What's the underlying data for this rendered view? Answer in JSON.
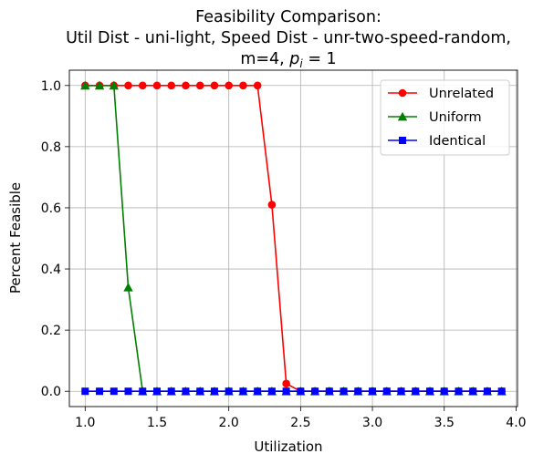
{
  "chart_data": {
    "type": "line",
    "title_lines": [
      "Feasibility Comparison:",
      "Util Dist - uni-light, Speed Dist - unr-two-speed-random,"
    ],
    "title_line3": {
      "prefix": "m=4, ",
      "p": "p",
      "sub": "i",
      "suffix": " = 1"
    },
    "xlabel": "Utilization",
    "ylabel": "Percent Feasible",
    "xlim": [
      0.89,
      4.01
    ],
    "ylim": [
      -0.05,
      1.05
    ],
    "xticks": [
      1.0,
      1.5,
      2.0,
      2.5,
      3.0,
      3.5,
      4.0
    ],
    "xtick_labels": [
      "1.0",
      "1.5",
      "2.0",
      "2.5",
      "3.0",
      "3.5",
      "4.0"
    ],
    "yticks": [
      0.0,
      0.2,
      0.4,
      0.6,
      0.8,
      1.0
    ],
    "ytick_labels": [
      "0.0",
      "0.2",
      "0.4",
      "0.6",
      "0.8",
      "1.0"
    ],
    "grid": true,
    "legend_position": "top-right",
    "x": [
      1.0,
      1.1,
      1.2,
      1.3,
      1.4,
      1.5,
      1.6,
      1.7,
      1.8,
      1.9,
      2.0,
      2.1,
      2.2,
      2.3,
      2.4,
      2.5,
      2.6,
      2.7,
      2.8,
      2.9,
      3.0,
      3.1,
      3.2,
      3.3,
      3.4,
      3.5,
      3.6,
      3.7,
      3.8,
      3.9
    ],
    "series": [
      {
        "name": "Unrelated",
        "color": "#ff0000",
        "marker": "circle",
        "values": [
          1.0,
          1.0,
          1.0,
          1.0,
          1.0,
          1.0,
          1.0,
          1.0,
          1.0,
          1.0,
          1.0,
          1.0,
          1.0,
          0.61,
          0.025,
          0.0,
          0.0,
          0.0,
          0.0,
          0.0,
          0.0,
          0.0,
          0.0,
          0.0,
          0.0,
          0.0,
          0.0,
          0.0,
          0.0,
          0.0
        ]
      },
      {
        "name": "Uniform",
        "color": "#008000",
        "marker": "triangle",
        "values": [
          1.0,
          1.0,
          1.0,
          0.34,
          0.0,
          0.0,
          0.0,
          0.0,
          0.0,
          0.0,
          0.0,
          0.0,
          0.0,
          0.0,
          0.0,
          0.0,
          0.0,
          0.0,
          0.0,
          0.0,
          0.0,
          0.0,
          0.0,
          0.0,
          0.0,
          0.0,
          0.0,
          0.0,
          0.0,
          0.0
        ]
      },
      {
        "name": "Identical",
        "color": "#0000ff",
        "marker": "square",
        "values": [
          0.0,
          0.0,
          0.0,
          0.0,
          0.0,
          0.0,
          0.0,
          0.0,
          0.0,
          0.0,
          0.0,
          0.0,
          0.0,
          0.0,
          0.0,
          0.0,
          0.0,
          0.0,
          0.0,
          0.0,
          0.0,
          0.0,
          0.0,
          0.0,
          0.0,
          0.0,
          0.0,
          0.0,
          0.0,
          0.0
        ]
      }
    ]
  }
}
